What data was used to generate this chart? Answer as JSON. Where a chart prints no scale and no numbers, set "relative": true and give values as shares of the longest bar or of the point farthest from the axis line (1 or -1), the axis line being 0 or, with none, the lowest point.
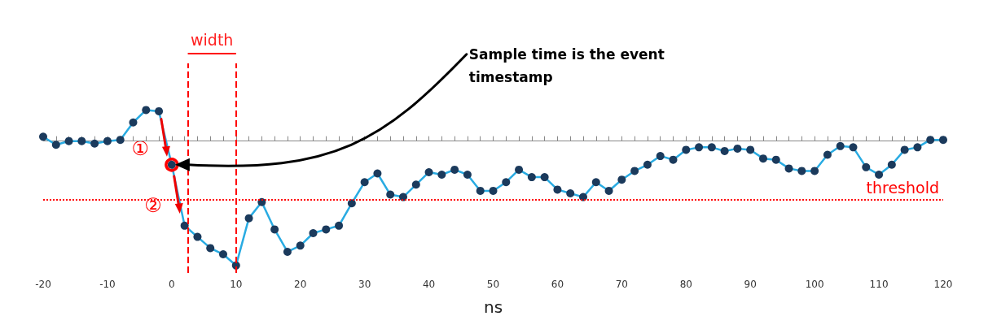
{
  "chart_data": {
    "type": "line",
    "relative": true,
    "xlabel": "ns",
    "color": "#29abe2",
    "marker": "circle",
    "grid": false,
    "xlim": [
      -20,
      120
    ],
    "xticks": [
      -20,
      -10,
      0,
      10,
      20,
      30,
      40,
      50,
      60,
      70,
      80,
      90,
      100,
      110,
      120
    ],
    "x": [
      -20,
      -18,
      -16,
      -14,
      -12,
      -10,
      -8,
      -6,
      -4,
      -2,
      0,
      2,
      4,
      6,
      8,
      10,
      12,
      14,
      16,
      18,
      20,
      22,
      24,
      26,
      28,
      30,
      32,
      34,
      36,
      38,
      40,
      42,
      44,
      46,
      48,
      50,
      52,
      54,
      56,
      58,
      60,
      62,
      64,
      66,
      68,
      70,
      72,
      74,
      76,
      78,
      80,
      82,
      84,
      86,
      88,
      90,
      92,
      94,
      96,
      98,
      100,
      102,
      104,
      106,
      108,
      110,
      112,
      114,
      116,
      118,
      120
    ],
    "values": [
      0.035,
      -0.03,
      0,
      0,
      -0.02,
      0,
      0.01,
      0.15,
      0.25,
      0.24,
      -0.19,
      -0.68,
      -0.77,
      -0.86,
      -0.91,
      -1,
      -0.62,
      -0.49,
      -0.71,
      -0.89,
      -0.84,
      -0.74,
      -0.71,
      -0.68,
      -0.5,
      -0.33,
      -0.26,
      -0.43,
      -0.45,
      -0.35,
      -0.25,
      -0.27,
      -0.23,
      -0.27,
      -0.4,
      -0.4,
      -0.33,
      -0.23,
      -0.29,
      -0.29,
      -0.39,
      -0.42,
      -0.45,
      -0.33,
      -0.4,
      -0.31,
      -0.24,
      -0.19,
      -0.12,
      -0.15,
      -0.07,
      -0.05,
      -0.05,
      -0.08,
      -0.06,
      -0.07,
      -0.14,
      -0.15,
      -0.22,
      -0.24,
      -0.24,
      -0.11,
      -0.04,
      -0.05,
      -0.21,
      -0.27,
      -0.19,
      -0.07,
      -0.05,
      0.01,
      0.01
    ],
    "ref_lines": [
      {
        "axis": "y",
        "value": -0.47,
        "label": "threshold",
        "color": "#ff0000",
        "line_style": "dotted"
      },
      {
        "axis": "x",
        "value": 2.5,
        "color": "#ff0000",
        "line_style": "dashed"
      },
      {
        "axis": "x",
        "value": 10,
        "color": "#ff0000",
        "line_style": "dashed"
      }
    ],
    "annotations": [
      "width",
      "Sample time is the event timestamp",
      {
        "text": "①",
        "x": -1,
        "y": 0.02
      },
      {
        "text": "②",
        "x": 1,
        "y": -0.44
      }
    ]
  }
}
